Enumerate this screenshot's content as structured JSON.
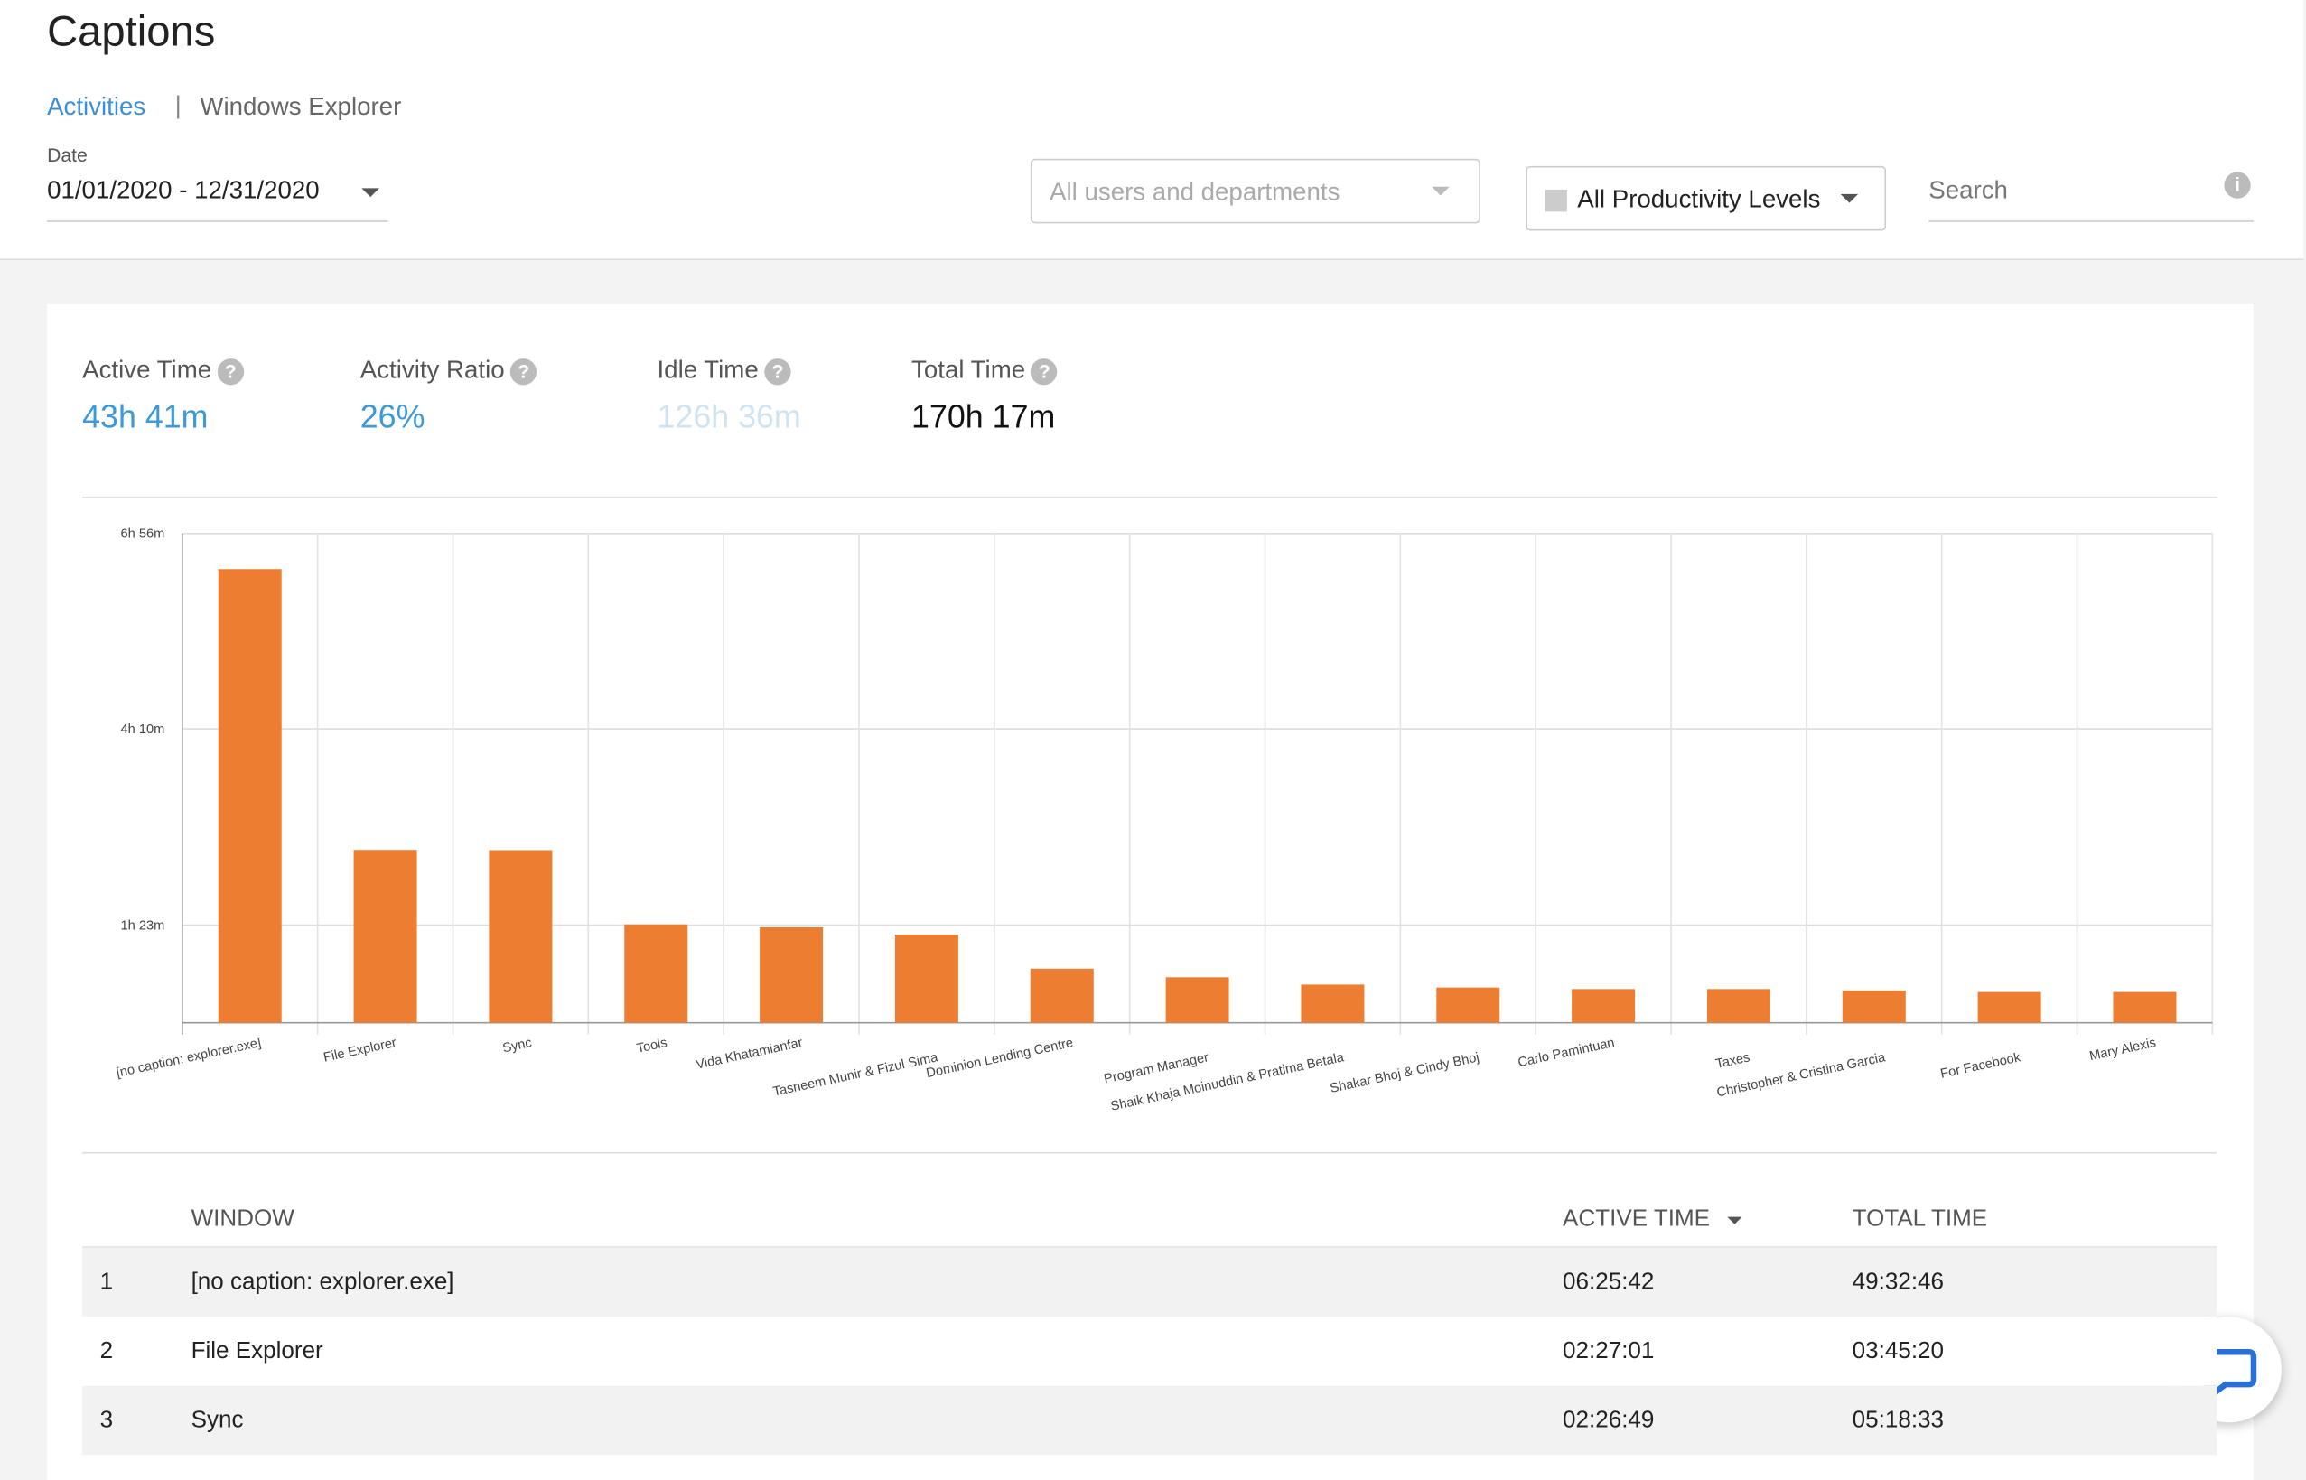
{
  "header": {
    "title": "Captions",
    "breadcrumb": [
      "Activities",
      "Windows Explorer"
    ],
    "date_label": "Date",
    "date_range": "01/01/2020 - 12/31/2020",
    "users_filter": "All users and departments",
    "productivity_filter": "All Productivity Levels",
    "search_placeholder": "Search"
  },
  "stats": [
    {
      "label": "Active Time",
      "value": "43h 41m"
    },
    {
      "label": "Activity Ratio",
      "value": "26%"
    },
    {
      "label": "Idle Time",
      "value": "126h 36m"
    },
    {
      "label": "Total Time",
      "value": "170h 17m"
    }
  ],
  "chart_data": {
    "type": "bar",
    "color": "#ed7d31",
    "grid": true,
    "categories": [
      "[no caption: explorer.exe]",
      "File Explorer",
      "Sync",
      "Tools",
      "Vida Khatamianfar",
      "Tasneem Munir & Fizul Sima",
      "Dominion Lending Centre",
      "Program Manager",
      "Shaik Khaja Moinuddin & Pratima Betala",
      "Shakar Bhoj & Cindy Bhoj",
      "Carlo Pamintuan",
      "Taxes",
      "Christopher & Cristina Garcia",
      "For Facebook",
      "Mary Alexis"
    ],
    "values": [
      385.7,
      147.0,
      146.8,
      83.7,
      81.2,
      75,
      46,
      38.7,
      32.5,
      30,
      28.7,
      28.7,
      27.5,
      26.2,
      26.2
    ],
    "ylim": [
      0,
      416
    ],
    "yticks": [
      {
        "value": 83,
        "label": "1h 23m"
      },
      {
        "value": 250,
        "label": "4h 10m"
      },
      {
        "value": 416,
        "label": "6h 56m"
      }
    ]
  },
  "table": {
    "columns": [
      "WINDOW",
      "ACTIVE TIME",
      "TOTAL TIME"
    ],
    "rows": [
      [
        "1",
        "[no caption: explorer.exe]",
        "06:25:42",
        "49:32:46"
      ],
      [
        "2",
        "File Explorer",
        "02:27:01",
        "03:45:20"
      ],
      [
        "3",
        "Sync",
        "02:26:49",
        "05:18:33"
      ]
    ]
  }
}
